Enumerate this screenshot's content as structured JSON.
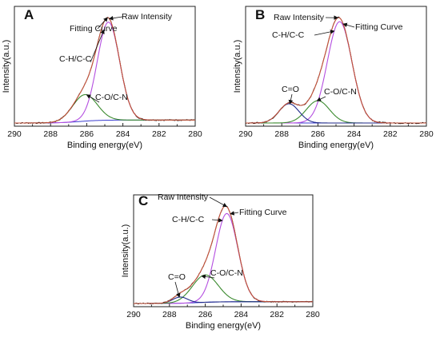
{
  "chart_data": [
    {
      "panel": "A",
      "type": "line",
      "xlabel": "Binding energy(eV)",
      "ylabel": "Intensity(a.u.)",
      "xlim": [
        290,
        280
      ],
      "x_reversed": true,
      "x_ticks": [
        290,
        288,
        286,
        284,
        282,
        280
      ],
      "y_tick_labels": false,
      "background": {
        "start": 0.0,
        "end": 0.03,
        "sigmoid_center": 286.4,
        "sigmoid_width": 0.55
      },
      "peaks": [
        {
          "label": "C-H/C-C",
          "center": 284.8,
          "height": 1.0,
          "fwhm": 1.45,
          "color": "#b44ee0"
        },
        {
          "label": "C-O/C-N",
          "center": 286.1,
          "height": 0.27,
          "fwhm": 1.6,
          "color": "#3a8a2e"
        }
      ],
      "curves": [
        {
          "name": "Raw Intensity",
          "color": "#000000",
          "noise": true
        },
        {
          "name": "Fitting Curve",
          "color": "#c8553d"
        }
      ],
      "annotations": [
        {
          "text": "Raw Intensity"
        },
        {
          "text": "Fitting Curve"
        },
        {
          "text": "C-H/C-C"
        },
        {
          "text": "C-O/C-N"
        }
      ]
    },
    {
      "panel": "B",
      "type": "line",
      "xlabel": "Binding energy(eV)",
      "ylabel": "Intensity(a.u.)",
      "xlim": [
        290,
        280
      ],
      "x_reversed": true,
      "x_ticks": [
        290,
        288,
        286,
        284,
        282,
        280
      ],
      "y_tick_labels": false,
      "background": {
        "start": 0.0,
        "end": 0.0,
        "sigmoid_center": 286.4,
        "sigmoid_width": 0.55
      },
      "peaks": [
        {
          "label": "C-H/C-C",
          "center": 284.8,
          "height": 1.0,
          "fwhm": 1.6,
          "color": "#b44ee0"
        },
        {
          "label": "C-O/C-N",
          "center": 286.0,
          "height": 0.22,
          "fwhm": 1.5,
          "color": "#3a8a2e"
        },
        {
          "label": "C=O",
          "center": 287.6,
          "height": 0.19,
          "fwhm": 1.3,
          "color": "#1f2a8a"
        }
      ],
      "curves": [
        {
          "name": "Raw Intensity",
          "color": "#000000",
          "noise": true
        },
        {
          "name": "Fitting Curve",
          "color": "#c8553d"
        }
      ],
      "annotations": [
        {
          "text": "Raw Intensity"
        },
        {
          "text": "Fitting Curve"
        },
        {
          "text": "C-H/C-C"
        },
        {
          "text": "C=O"
        },
        {
          "text": "C-O/C-N"
        }
      ]
    },
    {
      "panel": "C",
      "type": "line",
      "xlabel": "Binding energy(eV)",
      "ylabel": "Intensity(a.u.)",
      "xlim": [
        290,
        280
      ],
      "x_reversed": true,
      "x_ticks": [
        290,
        288,
        286,
        284,
        282,
        280
      ],
      "y_tick_labels": false,
      "background": {
        "start": 0.0,
        "end": 0.02,
        "sigmoid_center": 286.4,
        "sigmoid_width": 0.55
      },
      "peaks": [
        {
          "label": "C-H/C-C",
          "center": 284.8,
          "height": 1.0,
          "fwhm": 1.45,
          "color": "#b44ee0"
        },
        {
          "label": "C-O/C-N",
          "center": 286.0,
          "height": 0.31,
          "fwhm": 1.7,
          "color": "#3a8a2e"
        },
        {
          "label": "C=O",
          "center": 287.4,
          "height": 0.07,
          "fwhm": 1.0,
          "color": "#1f2a8a"
        }
      ],
      "curves": [
        {
          "name": "Raw Intensity",
          "color": "#000000",
          "noise": true
        },
        {
          "name": "Fitting Curve",
          "color": "#c8553d"
        }
      ],
      "annotations": [
        {
          "text": "Raw Intensity"
        },
        {
          "text": "Fitting Curve"
        },
        {
          "text": "C-H/C-C"
        },
        {
          "text": "C=O"
        },
        {
          "text": "C-O/C-N"
        }
      ]
    }
  ]
}
